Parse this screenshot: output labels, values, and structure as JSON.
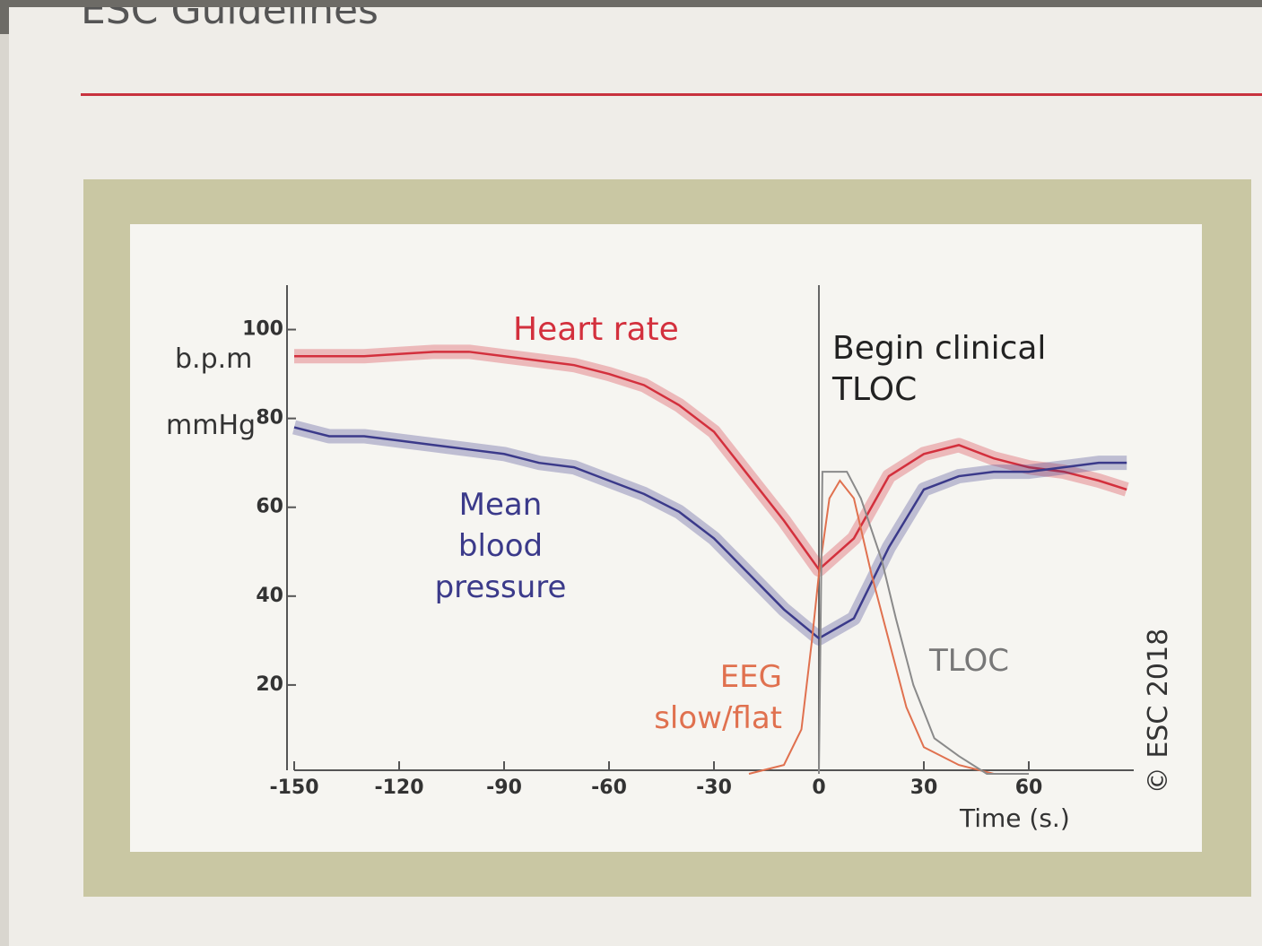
{
  "header": {
    "title": "ESC Guidelines"
  },
  "chart_data": {
    "type": "line",
    "y_label_bpm": "b.p.m",
    "y_label_mmhg": "mmHg",
    "xlabel": "Time (s.)",
    "vline": 0,
    "vline_label": "Begin clinical TLOC",
    "copyright": "© ESC 2018",
    "xlim": [
      -150,
      90
    ],
    "ylim": [
      0,
      110
    ],
    "xticks": [
      -150,
      -120,
      -90,
      -60,
      -30,
      0,
      30,
      60
    ],
    "yticks": [
      20,
      40,
      60,
      80,
      100
    ],
    "series": [
      {
        "name": "Heart rate",
        "color": "#d3303d",
        "x": [
          -150,
          -140,
          -130,
          -120,
          -110,
          -100,
          -90,
          -80,
          -70,
          -60,
          -50,
          -40,
          -30,
          -20,
          -10,
          0,
          10,
          20,
          30,
          40,
          50,
          60,
          70,
          80,
          88
        ],
        "values": [
          94,
          94,
          94,
          94.5,
          95,
          95,
          94,
          93,
          92,
          90,
          87.5,
          83,
          77,
          67,
          57,
          46,
          53,
          67,
          72,
          74,
          71,
          69,
          68,
          66,
          64
        ]
      },
      {
        "name": "Mean blood pressure",
        "color": "#3b3a8a",
        "x": [
          -150,
          -140,
          -130,
          -120,
          -110,
          -100,
          -90,
          -80,
          -70,
          -60,
          -50,
          -40,
          -30,
          -20,
          -10,
          0,
          10,
          20,
          30,
          40,
          50,
          60,
          70,
          80,
          88
        ],
        "values": [
          78,
          76,
          76,
          75,
          74,
          73,
          72,
          70,
          69,
          66,
          63,
          59,
          53,
          45,
          37,
          30.5,
          35,
          51,
          64,
          67,
          68,
          68,
          69,
          70,
          70
        ]
      },
      {
        "name": "EEG slow/flat",
        "color": "#e0714f",
        "x": [
          -20,
          -10,
          -5,
          -2,
          0,
          3,
          6,
          10,
          15,
          20,
          25,
          30,
          40,
          50
        ],
        "values": [
          0,
          2,
          10,
          30,
          45,
          62,
          66,
          62,
          45,
          30,
          15,
          6,
          2,
          0
        ]
      },
      {
        "name": "TLOC",
        "color": "#8a8a8a",
        "x": [
          0,
          1,
          8,
          12,
          18,
          22,
          27,
          33,
          40,
          48,
          60
        ],
        "values": [
          0,
          68,
          68,
          62,
          48,
          35,
          20,
          8,
          4,
          0,
          0
        ]
      }
    ]
  }
}
